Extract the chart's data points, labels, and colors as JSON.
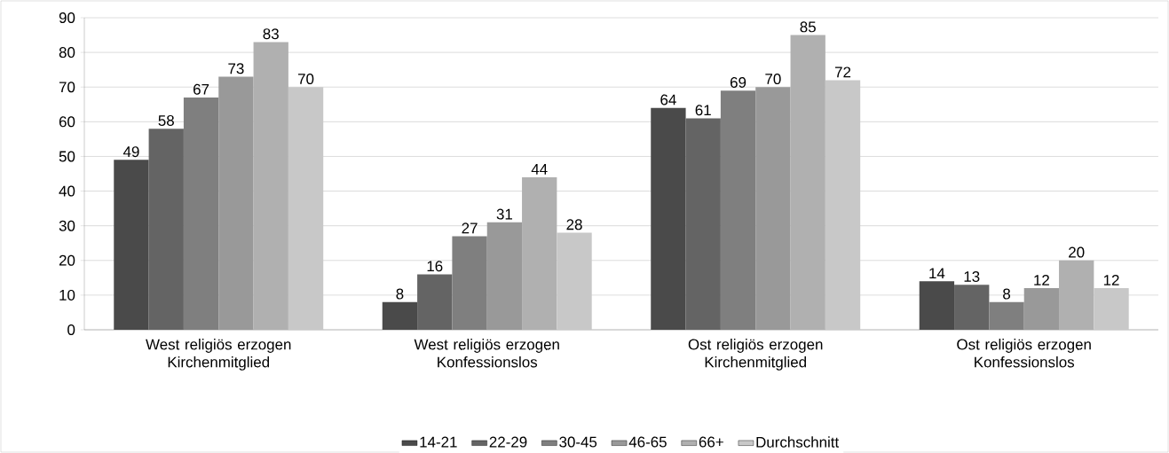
{
  "chart_data": {
    "type": "bar",
    "categories": [
      "West religiös erzogen Kirchenmitglied",
      "West religiös erzogen Konfessionslos",
      "Ost religiös erzogen Kirchenmitglied",
      "Ost religiös erzogen Konfessionslos"
    ],
    "series": [
      {
        "name": "14-21",
        "color": "#4a4a4a",
        "values": [
          49,
          8,
          64,
          14
        ]
      },
      {
        "name": "22-29",
        "color": "#646464",
        "values": [
          58,
          16,
          61,
          13
        ]
      },
      {
        "name": "30-45",
        "color": "#7f7f7f",
        "values": [
          67,
          27,
          69,
          8
        ]
      },
      {
        "name": "46-65",
        "color": "#999999",
        "values": [
          73,
          31,
          70,
          12
        ]
      },
      {
        "name": "66+",
        "color": "#b0b0b0",
        "values": [
          83,
          44,
          85,
          20
        ]
      },
      {
        "name": "Durchschnitt",
        "color": "#c8c8c8",
        "values": [
          70,
          28,
          72,
          12
        ]
      }
    ],
    "ylim": [
      0,
      90
    ],
    "yticks": [
      0,
      10,
      20,
      30,
      40,
      50,
      60,
      70,
      80,
      90
    ],
    "grid": "y",
    "legend": "bottom",
    "data_labels": true
  }
}
